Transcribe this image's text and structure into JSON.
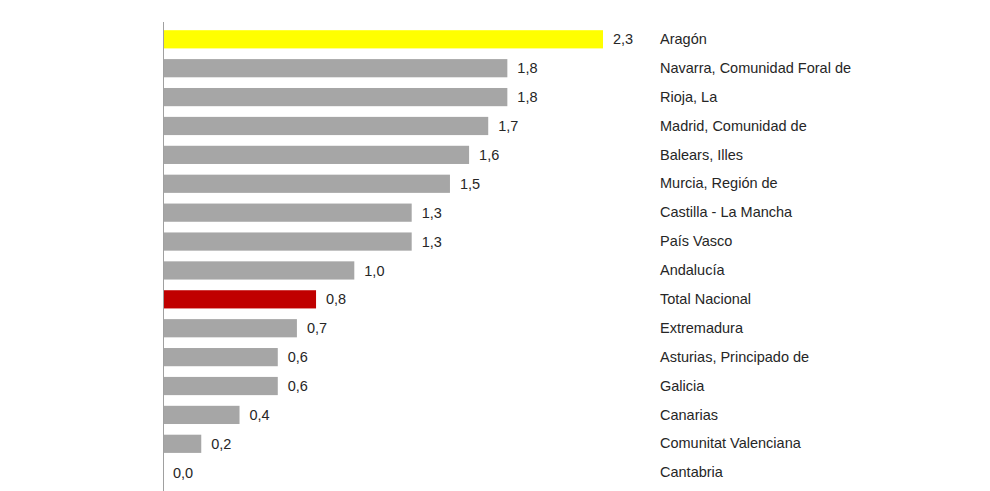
{
  "chart_data": {
    "type": "bar",
    "orientation": "horizontal",
    "categories": [
      "Aragón",
      "Navarra, Comunidad Foral de",
      "Rioja, La",
      "Madrid, Comunidad de",
      "Balears, Illes",
      "Murcia, Región de",
      "Castilla - La Mancha",
      "País Vasco",
      "Andalucía",
      "Total Nacional",
      "Extremadura",
      "Asturias, Principado de",
      "Galicia",
      "Canarias",
      "Comunitat Valenciana",
      "Cantabria"
    ],
    "values": [
      2.3,
      1.8,
      1.8,
      1.7,
      1.6,
      1.5,
      1.3,
      1.3,
      1.0,
      0.8,
      0.7,
      0.6,
      0.6,
      0.4,
      0.2,
      0.0
    ],
    "value_labels": [
      "2,3",
      "1,8",
      "1,8",
      "1,7",
      "1,6",
      "1,5",
      "1,3",
      "1,3",
      "1,0",
      "0,8",
      "0,7",
      "0,6",
      "0,6",
      "0,4",
      "0,2",
      "0,0"
    ],
    "colors": [
      "#ffff00",
      "#a6a6a6",
      "#a6a6a6",
      "#a6a6a6",
      "#a6a6a6",
      "#a6a6a6",
      "#a6a6a6",
      "#a6a6a6",
      "#a6a6a6",
      "#c00000",
      "#a6a6a6",
      "#a6a6a6",
      "#a6a6a6",
      "#a6a6a6",
      "#a6a6a6",
      "#a6a6a6"
    ],
    "xlim": [
      0,
      2.3
    ],
    "data_labels": true,
    "tick_labels": "y",
    "grid": false
  }
}
